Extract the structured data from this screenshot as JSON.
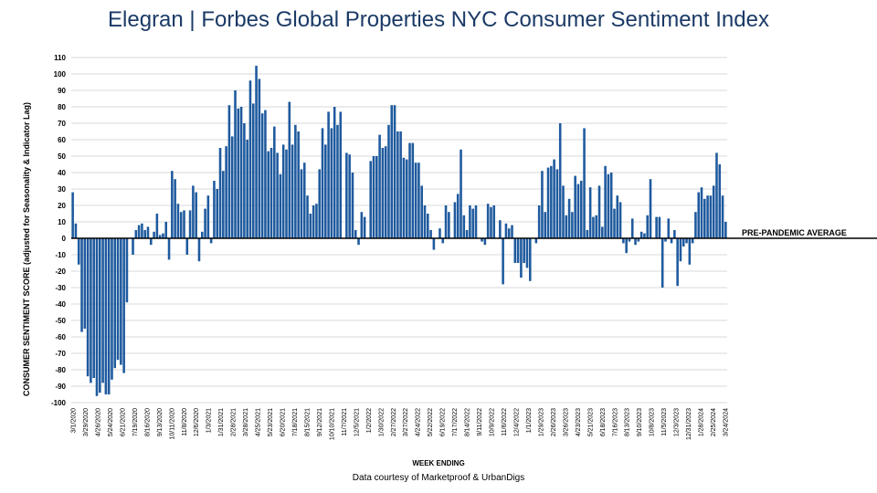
{
  "header": {
    "title_brand": "Elegran | Forbes Global Properties",
    "title_rest": " NYC Consumer Sentiment Index"
  },
  "footer": {
    "xlabel": "WEEK ENDING",
    "source": "Data courtesy of Marketproof & UrbanDigs"
  },
  "colors": {
    "bar": "#1f5a9e",
    "title": "#1b3a66",
    "grid": "#d9d9d9",
    "baseline": "#000000"
  },
  "chart_data": {
    "type": "bar",
    "title": "Elegran | Forbes Global Properties NYC Consumer Sentiment Index",
    "xlabel": "WEEK ENDING",
    "ylabel": "CONSUMER SENTIMENT SCORE (adjusted for Seasonality & Indicator Lag)",
    "ylim": [
      -100,
      110
    ],
    "yticks": [
      110,
      100,
      90,
      80,
      70,
      60,
      50,
      40,
      30,
      20,
      10,
      0,
      -10,
      -20,
      -30,
      -40,
      -50,
      -60,
      -70,
      -80,
      -90,
      -100
    ],
    "grid": true,
    "reference_line": {
      "label": "PRE-PANDEMIC AVERAGE",
      "value": 0
    },
    "x_tick_labels": [
      "3/1/2020",
      "3/29/2020",
      "4/26/2020",
      "5/24/2020",
      "6/21/2020",
      "7/19/2020",
      "8/16/2020",
      "9/13/2020",
      "10/11/2020",
      "11/8/2020",
      "12/6/2020",
      "1/3/2021",
      "1/31/2021",
      "2/28/2021",
      "3/28/2021",
      "4/25/2021",
      "5/23/2021",
      "6/20/2021",
      "7/18/2021",
      "8/15/2021",
      "9/12/2021",
      "10/10/2021",
      "11/7/2021",
      "12/5/2021",
      "1/2/2022",
      "1/30/2022",
      "2/27/2022",
      "3/27/2022",
      "4/24/2022",
      "5/22/2022",
      "6/19/2022",
      "7/17/2022",
      "8/14/2022",
      "9/11/2022",
      "10/9/2022",
      "11/6/2022",
      "12/4/2022",
      "1/1/2023",
      "1/29/2023",
      "2/26/2023",
      "3/26/2023",
      "4/23/2023",
      "5/21/2023",
      "6/18/2023",
      "7/16/2023",
      "8/13/2023",
      "9/10/2023",
      "10/8/2023",
      "11/5/2023",
      "12/3/2023",
      "12/31/2023",
      "1/28/2024",
      "2/25/2024",
      "3/24/2024"
    ],
    "values": [
      28,
      9,
      -16,
      -57,
      -55,
      -84,
      -88,
      -85,
      -96,
      -94,
      -88,
      -95,
      -95,
      -86,
      -79,
      -74,
      -77,
      -82,
      -39,
      0,
      -10,
      5,
      8,
      9,
      5,
      7,
      -4,
      4,
      15,
      2,
      3,
      10,
      -13,
      41,
      36,
      21,
      16,
      17,
      -10,
      17,
      32,
      28,
      -14,
      4,
      18,
      26,
      -3,
      35,
      30,
      55,
      41,
      56,
      81,
      62,
      90,
      79,
      80,
      70,
      60,
      96,
      82,
      105,
      97,
      76,
      78,
      53,
      55,
      68,
      52,
      39,
      57,
      54,
      83,
      57,
      69,
      65,
      42,
      46,
      26,
      15,
      20,
      21,
      42,
      67,
      57,
      77,
      67,
      80,
      69,
      77,
      0,
      52,
      51,
      40,
      5,
      -4,
      16,
      13,
      0,
      47,
      50,
      50,
      63,
      55,
      56,
      69,
      81,
      81,
      65,
      65,
      49,
      48,
      58,
      58,
      46,
      46,
      32,
      20,
      15,
      5,
      -7,
      0,
      6,
      -3,
      20,
      16,
      0,
      22,
      27,
      54,
      14,
      5,
      20,
      18,
      20,
      0,
      -2,
      -4,
      21,
      19,
      20,
      0,
      11,
      -28,
      9,
      6,
      8,
      -15,
      -15,
      -24,
      -15,
      -18,
      -26,
      0,
      -3,
      20,
      41,
      16,
      43,
      44,
      48,
      42,
      70,
      32,
      14,
      24,
      16,
      38,
      33,
      35,
      67,
      5,
      31,
      13,
      14,
      32,
      7,
      44,
      39,
      40,
      18,
      26,
      22,
      -3,
      -9,
      -2,
      12,
      -4,
      -2,
      4,
      3,
      14,
      36,
      0,
      13,
      13,
      -30,
      -2,
      12,
      -3,
      5,
      -29,
      -14,
      -5,
      -3,
      -16,
      -3,
      16,
      28,
      31,
      24,
      26,
      26,
      32,
      52,
      45,
      26,
      10
    ]
  }
}
